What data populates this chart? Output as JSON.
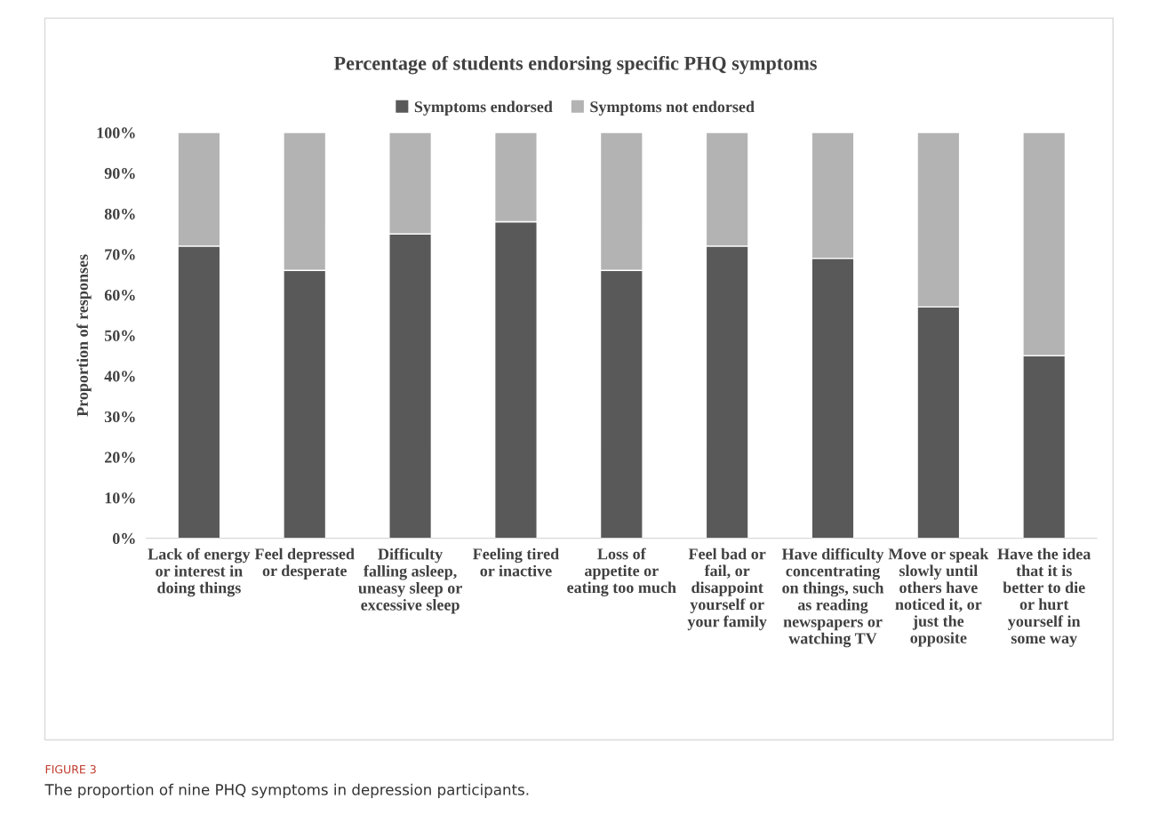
{
  "chart_data": {
    "type": "bar",
    "stacked": true,
    "title": "Percentage of students endorsing specific PHQ symptoms",
    "ylabel": "Proportion of responses",
    "categories": [
      "Lack of energy or interest in doing things",
      "Feel depressed or desperate",
      "Difficulty falling asleep, uneasy sleep or excessive sleep",
      "Feeling tired or inactive",
      "Loss of appetite or eating too much",
      "Feel bad or fail, or disappoint yourself or your family",
      "Have difficulty concentrating on things, such as reading newspapers or watching TV",
      "Move or speak slowly until others have noticed it, or just the opposite",
      "Have the idea that it is better to die or hurt yourself in some way"
    ],
    "series": [
      {
        "name": "Symptoms endorsed",
        "color": "#595959",
        "values": [
          72,
          66,
          75,
          78,
          66,
          72,
          69,
          57,
          45
        ]
      },
      {
        "name": "Symptoms not endorsed",
        "color": "#b3b3b3",
        "values": [
          28,
          34,
          25,
          22,
          34,
          28,
          31,
          43,
          55
        ]
      }
    ],
    "ylim": [
      0,
      100
    ],
    "yticks": [
      {
        "value": 0,
        "label": "0%"
      },
      {
        "value": 10,
        "label": "10%"
      },
      {
        "value": 20,
        "label": "20%"
      },
      {
        "value": 30,
        "label": "30%"
      },
      {
        "value": 40,
        "label": "40%"
      },
      {
        "value": 50,
        "label": "50%"
      },
      {
        "value": 60,
        "label": "60%"
      },
      {
        "value": 70,
        "label": "70%"
      },
      {
        "value": 80,
        "label": "80%"
      },
      {
        "value": 90,
        "label": "90%"
      },
      {
        "value": 100,
        "label": "100%"
      }
    ],
    "grid": false,
    "legend": "top",
    "annotations": [
      "FIGURE 3",
      "The proportion of nine PHQ symptoms in depression participants."
    ]
  }
}
